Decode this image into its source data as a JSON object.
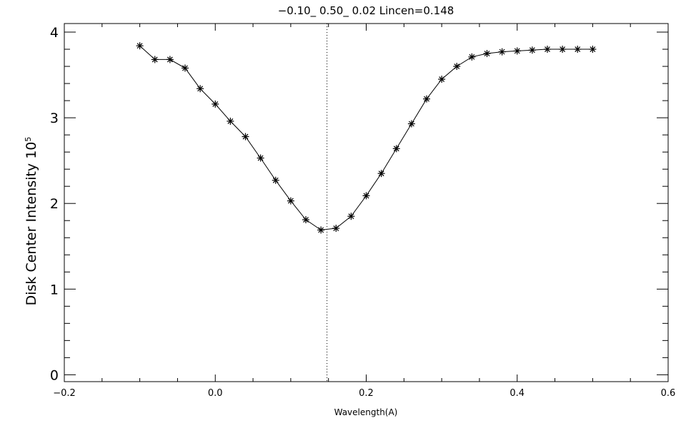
{
  "chart_data": {
    "type": "line",
    "title": "−0.10_ 0.50_ 0.02   Lincen=0.148",
    "xlabel": "Wavelength(A)",
    "ylabel": "Disk Center Intensity 10",
    "ylabel_superscript": "5",
    "xlim": [
      -0.2,
      0.6
    ],
    "ylim": [
      -0.08,
      4.1
    ],
    "xticks": [
      -0.2,
      0.0,
      0.2,
      0.4,
      0.6
    ],
    "xtick_labels": [
      "−0.2",
      "0.0",
      "0.2",
      "0.4",
      "0.6"
    ],
    "yticks": [
      0,
      1,
      2,
      3,
      4
    ],
    "ytick_labels": [
      "0",
      "1",
      "2",
      "3",
      "4"
    ],
    "marker": "asterisk",
    "line_center": 0.148,
    "grid": false,
    "series": [
      {
        "x": [
          -0.1,
          -0.08,
          -0.06,
          -0.04,
          -0.02,
          0.0,
          0.02,
          0.04,
          0.06,
          0.08,
          0.1,
          0.12,
          0.14,
          0.16,
          0.18,
          0.2,
          0.22,
          0.24,
          0.26,
          0.28,
          0.3,
          0.32,
          0.34,
          0.36,
          0.38,
          0.4,
          0.42,
          0.44,
          0.46,
          0.48,
          0.5
        ],
        "y": [
          3.84,
          3.68,
          3.68,
          3.58,
          3.34,
          3.16,
          2.96,
          2.78,
          2.53,
          2.27,
          2.03,
          1.81,
          1.69,
          1.71,
          1.85,
          2.09,
          2.35,
          2.64,
          2.93,
          3.22,
          3.45,
          3.6,
          3.71,
          3.75,
          3.77,
          3.78,
          3.79,
          3.8,
          3.8,
          3.8,
          3.8
        ]
      }
    ]
  }
}
